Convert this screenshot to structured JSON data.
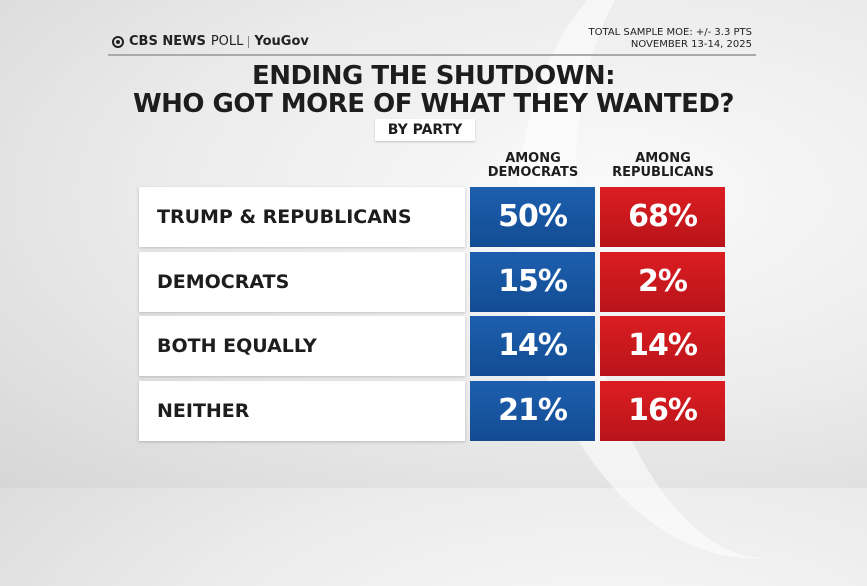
{
  "header": {
    "brand": "CBS NEWS",
    "brand_suffix": "POLL",
    "partner": "YouGov",
    "moe": "TOTAL SAMPLE MOE: +/- 3.3 PTS",
    "date": "NOVEMBER 13-14, 2025"
  },
  "title_line1": "ENDING THE SHUTDOWN:",
  "title_line2": "WHO GOT MORE OF WHAT THEY WANTED?",
  "subtitle": "BY PARTY",
  "colors": {
    "democrats": "#1a5aa6",
    "republicans": "#d41c21"
  },
  "chart_data": {
    "type": "table",
    "columns": [
      "AMONG DEMOCRATS",
      "AMONG REPUBLICANS"
    ],
    "rows": [
      {
        "label": "TRUMP & REPUBLICANS",
        "values": [
          "50%",
          "68%"
        ]
      },
      {
        "label": "DEMOCRATS",
        "values": [
          "15%",
          "2%"
        ]
      },
      {
        "label": "BOTH EQUALLY",
        "values": [
          "14%",
          "14%"
        ]
      },
      {
        "label": "NEITHER",
        "values": [
          "21%",
          "16%"
        ]
      }
    ]
  }
}
